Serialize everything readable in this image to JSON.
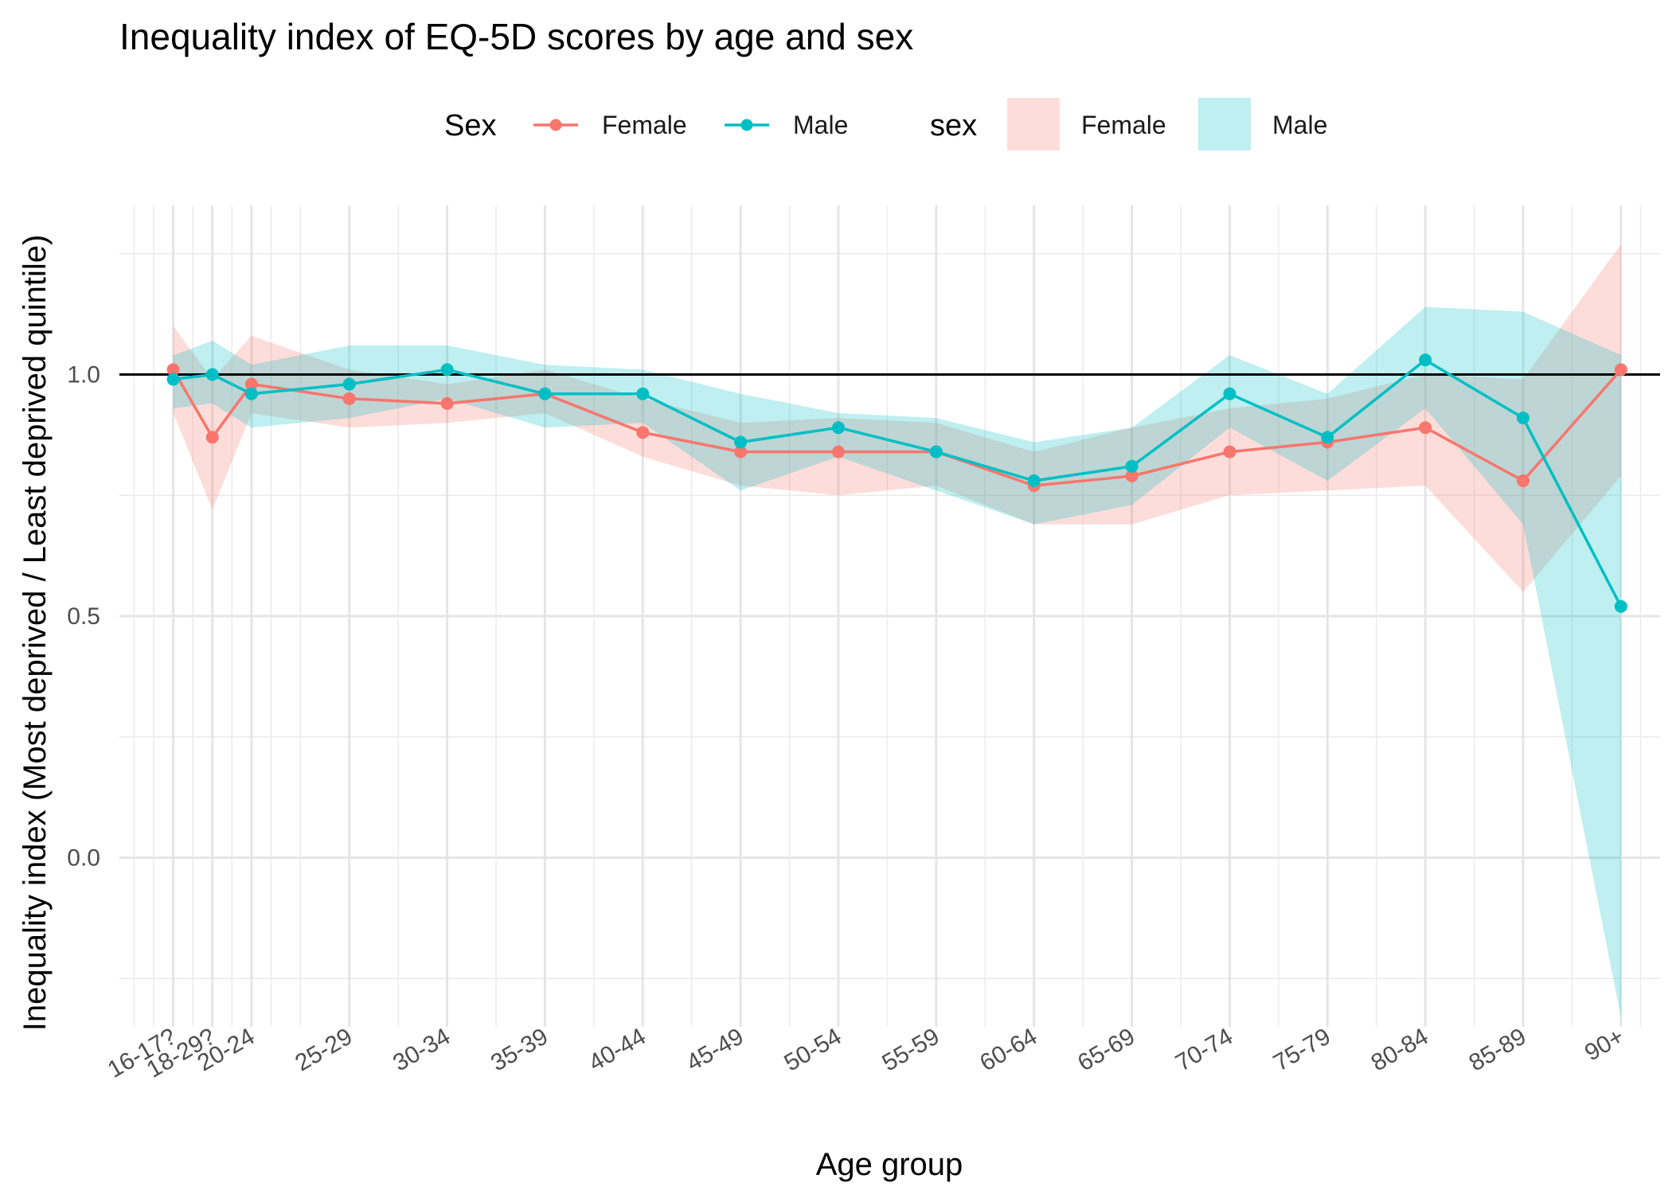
{
  "chart_data": {
    "type": "line",
    "title": "Inequality index of EQ-5D scores by age and sex",
    "xlabel": "Age group",
    "ylabel": "Inequality index (Most deprived / Least deprived quintile)",
    "categories": [
      "16-17?",
      "18-29?",
      "20-24",
      "25-29",
      "30-34",
      "35-39",
      "40-44",
      "45-49",
      "50-54",
      "55-59",
      "60-64",
      "65-69",
      "70-74",
      "75-79",
      "80-84",
      "85-89",
      "90+"
    ],
    "x_positions": [
      1,
      1.4,
      1.8,
      2.8,
      3.8,
      4.8,
      5.8,
      6.8,
      7.8,
      8.8,
      9.8,
      10.8,
      11.8,
      12.8,
      13.8,
      14.8,
      15.8
    ],
    "xlim": [
      0.45,
      16.2
    ],
    "ylim": [
      -0.35,
      1.35
    ],
    "yticks": [
      0.0,
      0.5,
      1.0
    ],
    "ytick_labels": [
      "0.0",
      "0.5",
      "1.0"
    ],
    "reference_line": 1.0,
    "legend_placement": "top",
    "grid": true,
    "legend": {
      "line_title": "Sex",
      "fill_title": "sex",
      "entries": [
        "Female",
        "Male"
      ]
    },
    "series": [
      {
        "name": "Female",
        "color": "#F8766D",
        "values": [
          1.01,
          0.87,
          0.98,
          0.95,
          0.94,
          0.96,
          0.88,
          0.84,
          0.84,
          0.84,
          0.77,
          0.79,
          0.84,
          0.86,
          0.89,
          0.78,
          1.01
        ],
        "lower": [
          0.92,
          0.72,
          0.92,
          0.89,
          0.9,
          0.92,
          0.83,
          0.77,
          0.75,
          0.77,
          0.69,
          0.69,
          0.75,
          0.76,
          0.77,
          0.55,
          0.79
        ],
        "upper": [
          1.1,
          0.99,
          1.08,
          1.01,
          0.98,
          1.01,
          0.95,
          0.9,
          0.91,
          0.9,
          0.84,
          0.89,
          0.93,
          0.95,
          1.0,
          0.99,
          1.27
        ]
      },
      {
        "name": "Male",
        "color": "#00BFC4",
        "values": [
          0.99,
          1.0,
          0.96,
          0.98,
          1.01,
          0.96,
          0.96,
          0.86,
          0.89,
          0.84,
          0.78,
          0.81,
          0.96,
          0.87,
          1.03,
          0.91,
          0.52
        ],
        "lower": [
          0.93,
          0.94,
          0.89,
          0.91,
          0.95,
          0.89,
          0.9,
          0.76,
          0.83,
          0.76,
          0.69,
          0.73,
          0.89,
          0.78,
          0.93,
          0.69,
          -0.33
        ],
        "upper": [
          1.04,
          1.07,
          1.02,
          1.06,
          1.06,
          1.02,
          1.01,
          0.96,
          0.92,
          0.91,
          0.86,
          0.89,
          1.04,
          0.96,
          1.14,
          1.13,
          1.04
        ]
      }
    ]
  }
}
